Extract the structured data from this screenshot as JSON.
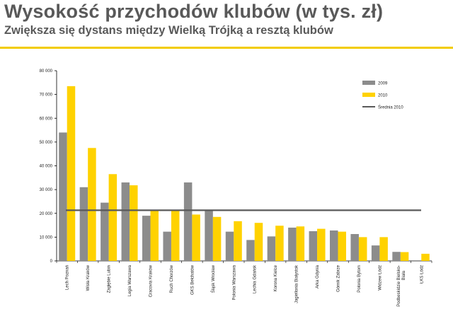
{
  "header": {
    "title": "Wysokość przychodów klubów (w tys. zł)",
    "subtitle": "Zwiększa się dystans między Wielką Trójką a resztą klubów"
  },
  "colors": {
    "series_2009": "#8c8c8c",
    "series_2010": "#ffd200",
    "average": "#595959",
    "accent_rule": "#f2cc00",
    "title_text": "#595959"
  },
  "chart_data": {
    "type": "bar",
    "title": "Wysokość przychodów klubów (w tys. zł)",
    "xlabel": "",
    "ylabel": "",
    "ylim": [
      0,
      80000
    ],
    "yticks": [
      0,
      10000,
      20000,
      30000,
      40000,
      50000,
      60000,
      70000,
      80000
    ],
    "ytick_labels": [
      "0",
      "10 000",
      "20 000",
      "30 000",
      "40 000",
      "50 000",
      "60 000",
      "70 000",
      "80 000"
    ],
    "grid": false,
    "legend_position": "top-right",
    "categories": [
      "Lech Poznań",
      "Wisła Kraków",
      "Zagłębie Lubin",
      "Legia Warszawa",
      "Cracovia Kraków",
      "Ruch Chorzów",
      "GKS Bełchatów",
      "Śląsk Wrocław",
      "Polonia Warszawa",
      "Lechia Gdańsk",
      "Korona Kielce",
      "Jagiellonia Białystok",
      "Arka Gdynia",
      "Górnik Zabrze",
      "Polonia Bytom",
      "Widzew Łódź",
      "Podbeskidzie Bielsko-Biała",
      "ŁKS Łódź"
    ],
    "series": [
      {
        "name": "2009",
        "values": [
          54000,
          31000,
          24500,
          33000,
          19000,
          12300,
          33000,
          21500,
          12300,
          8800,
          10300,
          14000,
          12500,
          12800,
          11300,
          6500,
          3800,
          null
        ]
      },
      {
        "name": "2010",
        "values": [
          73500,
          47500,
          36500,
          31800,
          21500,
          21000,
          19500,
          18500,
          16700,
          16000,
          14800,
          14500,
          13500,
          12300,
          10000,
          10000,
          3700,
          3000
        ]
      }
    ],
    "average_line": {
      "name": "Średnia 2010",
      "value": 21300
    }
  }
}
